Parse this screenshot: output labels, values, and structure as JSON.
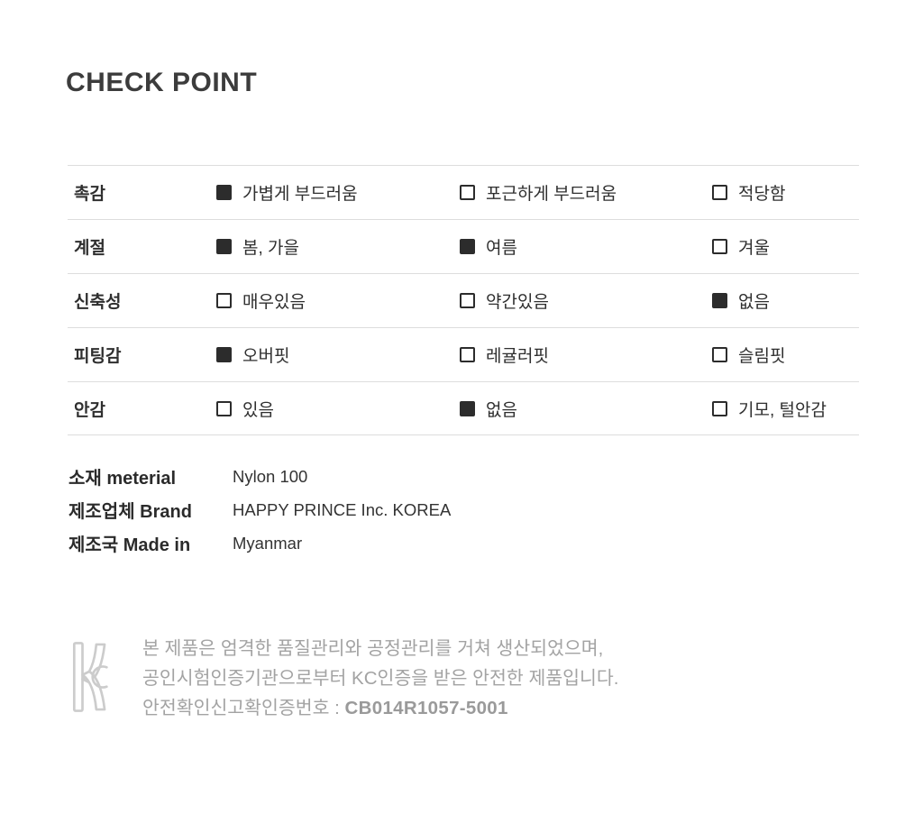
{
  "title": "CHECK POINT",
  "table": {
    "rows": [
      {
        "label": "촉감",
        "options": [
          {
            "text": "가볍게 부드러움",
            "checked": true
          },
          {
            "text": "포근하게 부드러움",
            "checked": false
          },
          {
            "text": "적당함",
            "checked": false
          }
        ]
      },
      {
        "label": "계절",
        "options": [
          {
            "text": "봄, 가을",
            "checked": true
          },
          {
            "text": "여름",
            "checked": true
          },
          {
            "text": "겨울",
            "checked": false
          }
        ]
      },
      {
        "label": "신축성",
        "options": [
          {
            "text": "매우있음",
            "checked": false
          },
          {
            "text": "약간있음",
            "checked": false
          },
          {
            "text": "없음",
            "checked": true
          }
        ]
      },
      {
        "label": "피팅감",
        "options": [
          {
            "text": "오버핏",
            "checked": true
          },
          {
            "text": "레귤러핏",
            "checked": false
          },
          {
            "text": "슬림핏",
            "checked": false
          }
        ]
      },
      {
        "label": "안감",
        "options": [
          {
            "text": "있음",
            "checked": false
          },
          {
            "text": "없음",
            "checked": true
          },
          {
            "text": "기모, 털안감",
            "checked": false
          }
        ]
      }
    ]
  },
  "details": [
    {
      "label": "소재 meterial",
      "value": "Nylon 100"
    },
    {
      "label": "제조업체 Brand",
      "value": "HAPPY PRINCE Inc. KOREA"
    },
    {
      "label": "제조국 Made in",
      "value": "Myanmar"
    }
  ],
  "certification": {
    "icon": "kc-mark-icon",
    "line1": "본 제품은 엄격한 품질관리와 공정관리를 거쳐 생산되었으며,",
    "line2": "공인시험인증기관으로부터 KC인증을 받은 안전한 제품입니다.",
    "line3_label": "안전확인신고확인증번호 : ",
    "line3_number": "CB014R1057-5001"
  },
  "colors": {
    "text": "#2f2f2f",
    "title": "#3c3c3c",
    "divider": "#dddddd",
    "checkbox": "#2c2c2c",
    "muted": "#a3a3a3",
    "kc_mark": "#cccccc"
  }
}
